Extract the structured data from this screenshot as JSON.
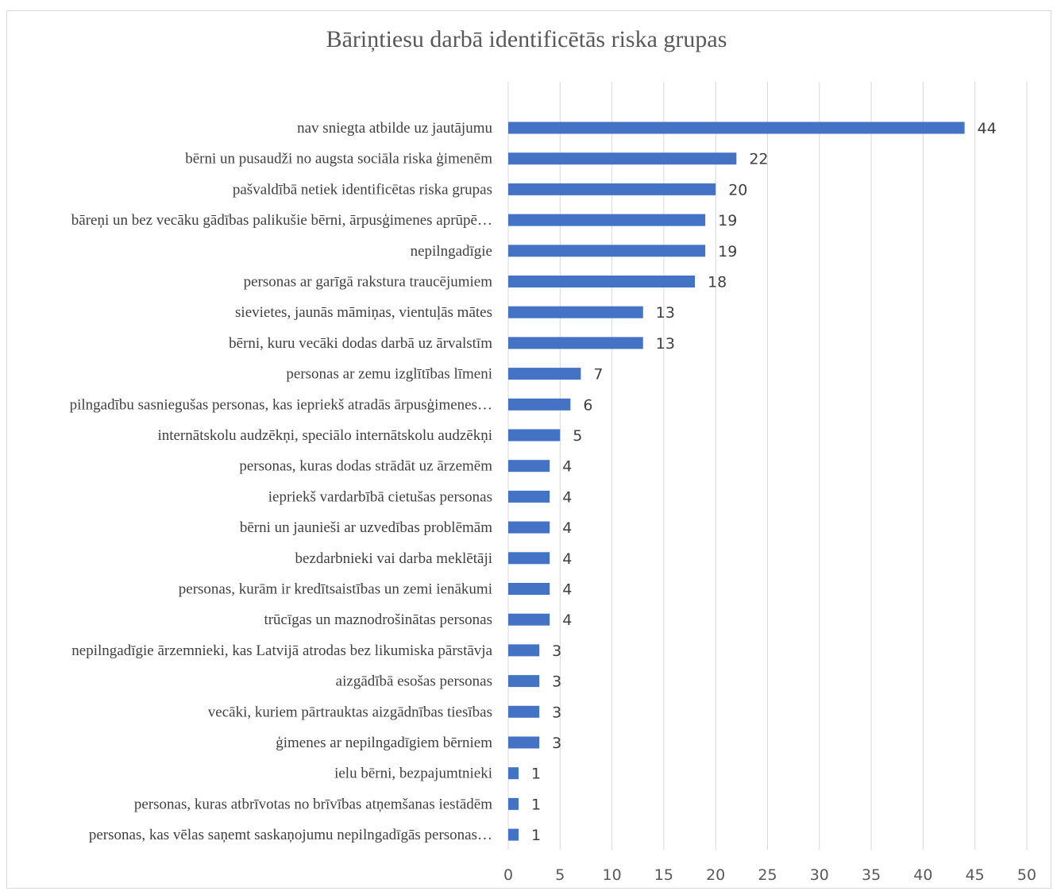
{
  "chart_data": {
    "type": "bar",
    "orientation": "horizontal",
    "title": "Bāriņtiesu darbā identificētās riska grupas",
    "xlabel": "",
    "ylabel": "",
    "categories": [
      "nav sniegta atbilde uz jautājumu",
      "bērni un pusaudži no augsta sociāla riska ģimenēm",
      "pašvaldībā netiek identificētas riska grupas",
      "bāreņi un bez vecāku gādības palikušie bērni, ārpusģimenes aprūpē…",
      "nepilngadīgie",
      "personas ar garīgā rakstura traucējumiem",
      "sievietes, jaunās māmiņas, vientuļās mātes",
      "bērni, kuru vecāki dodas darbā uz ārvalstīm",
      "personas ar zemu izglītības līmeni",
      "pilngadību sasniegušas personas, kas iepriekš atradās ārpusģimenes…",
      "internātskolu audzēkņi, speciālo internātskolu audzēkņi",
      "personas, kuras dodas strādāt uz ārzemēm",
      "iepriekš vardarbībā cietušas personas",
      "bērni un jaunieši ar uzvedības problēmām",
      "bezdarbnieki vai darba meklētāji",
      "personas, kurām ir kredītsaistības un zemi ienākumi",
      "trūcīgas un maznodrošinātas personas",
      "nepilngadīgie ārzemnieki, kas Latvijā atrodas bez likumiska pārstāvja",
      "aizgādībā esošas personas",
      "vecāki, kuriem pārtrauktas aizgādnības tiesības",
      "ģimenes ar nepilngadīgiem bērniem",
      "ielu bērni, bezpajumtnieki",
      "personas, kuras atbrīvotas no brīvības atņemšanas iestādēm",
      "personas, kas vēlas saņemt saskaņojumu nepilngadīgās personas…"
    ],
    "values": [
      44,
      22,
      20,
      19,
      19,
      18,
      13,
      13,
      7,
      6,
      5,
      4,
      4,
      4,
      4,
      4,
      4,
      3,
      3,
      3,
      3,
      1,
      1,
      1
    ],
    "xlim": [
      0,
      50
    ],
    "ticks": [
      "0",
      "5",
      "10",
      "15",
      "20",
      "25",
      "30",
      "35",
      "40",
      "45",
      "50"
    ],
    "grid": "vertical",
    "bar_color": "#4472c4",
    "grid_color": "#d9d9d9"
  }
}
